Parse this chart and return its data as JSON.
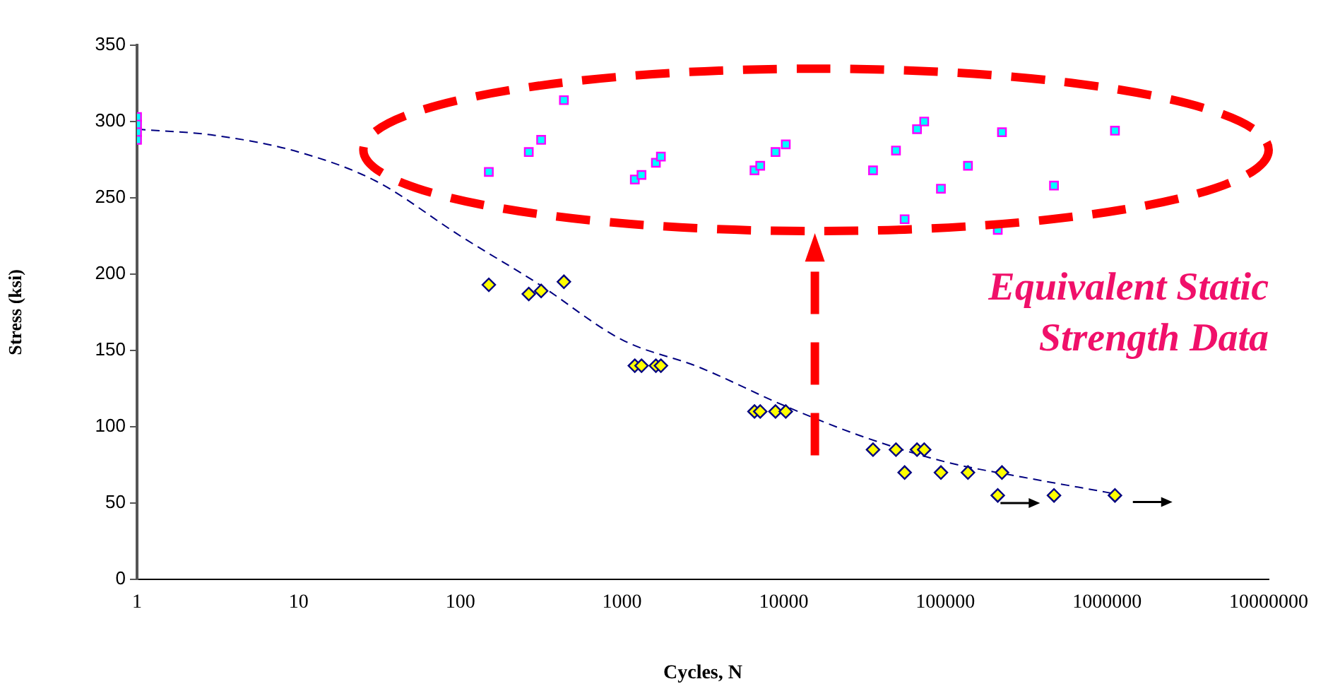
{
  "chart_data": {
    "type": "scatter",
    "xlabel": "Cycles, N",
    "ylabel": "Stress (ksi)",
    "log": "x",
    "xlim": [
      1,
      10000000
    ],
    "xticks": [
      1,
      10,
      100,
      1000,
      10000,
      100000,
      1000000,
      10000000
    ],
    "ylim": [
      0,
      350
    ],
    "yticks": [
      0,
      50,
      100,
      150,
      200,
      250,
      300,
      350
    ],
    "grid": false,
    "legend": false,
    "annotations": [
      "Equivalent Static Strength Data"
    ],
    "series": [
      {
        "marker": "square",
        "color": "#00ffff",
        "x": [
          1,
          1,
          1,
          1,
          150,
          265,
          316,
          437,
          1200,
          1320,
          1620,
          1740,
          6600,
          7160,
          8900,
          10300,
          35700,
          49500,
          66800,
          74000,
          56000,
          93900,
          138000,
          224000,
          211000,
          470000,
          1120000
        ],
        "values": [
          303,
          298,
          293,
          288,
          267,
          280,
          288,
          314,
          262,
          265,
          273,
          277,
          268,
          271,
          280,
          285,
          268,
          281,
          295,
          300,
          236,
          256,
          271,
          293,
          229,
          258,
          294
        ]
      },
      {
        "marker": "diamond",
        "color": "#ffff00",
        "x": [
          150,
          265,
          316,
          437,
          1200,
          1320,
          1620,
          1740,
          6600,
          7160,
          8900,
          10300,
          35700,
          49500,
          66800,
          74000,
          56000,
          93900,
          138000,
          224000,
          211000,
          470000,
          1120000
        ],
        "values": [
          193,
          187,
          189,
          195,
          140,
          140,
          140,
          140,
          110,
          110,
          110,
          110,
          85,
          85,
          85,
          85,
          70,
          70,
          70,
          70,
          55,
          55,
          55
        ]
      },
      {
        "type": "line",
        "marker": "none",
        "line_style": "dashed",
        "color": "#000080",
        "x": [
          1,
          3,
          10,
          30,
          100,
          300,
          1000,
          3000,
          10000,
          30000,
          100000,
          300000,
          1000000,
          1120000
        ],
        "values": [
          295,
          291,
          280,
          261,
          225,
          194,
          157,
          139,
          114,
          94,
          77,
          67,
          57,
          56
        ]
      }
    ]
  }
}
